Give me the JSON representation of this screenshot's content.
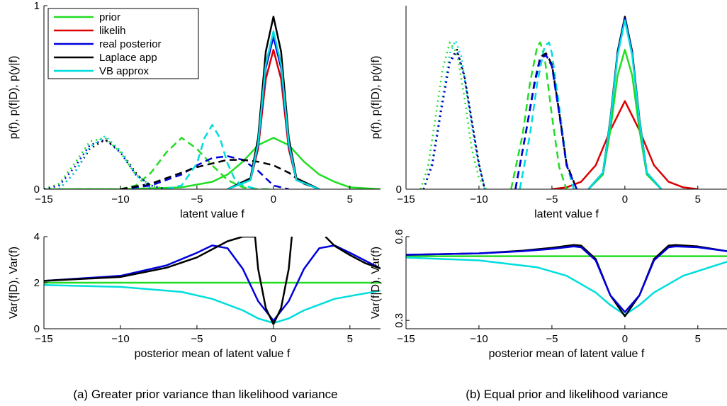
{
  "captions": {
    "a": "(a)  Greater prior variance than likelihood variance",
    "b": "(b)  Equal prior and likelihood variance"
  },
  "chart_data": [
    {
      "id": "a-top",
      "type": "line",
      "xlabel": "latent value f",
      "ylabel": "p(f), p(f|D), p(y|f)",
      "xlim": [
        -15,
        7
      ],
      "ylim": [
        0,
        1
      ],
      "xticks": [
        -15,
        -10,
        -5,
        0,
        5
      ],
      "yticks": [
        0,
        1
      ],
      "xtick_labels": [
        "−15",
        "−10",
        "−5",
        "0",
        "5"
      ],
      "ytick_labels": [
        "0",
        "1"
      ],
      "legend": {
        "position": "top-left",
        "entries": [
          "prior",
          "likelih",
          "real posterior",
          "Laplace app",
          "VB approx"
        ]
      },
      "series": [
        {
          "name": "prior",
          "color": "#22dd22",
          "dash": "solid",
          "x": [
            -15,
            -10,
            -6,
            -4,
            -3,
            -2,
            -1,
            0,
            1,
            2,
            3,
            4,
            5,
            7
          ],
          "y": [
            0,
            0,
            0.01,
            0.04,
            0.08,
            0.15,
            0.24,
            0.28,
            0.24,
            0.15,
            0.08,
            0.04,
            0.01,
            0
          ]
        },
        {
          "name": "prior",
          "color": "#22dd22",
          "dash": "dash",
          "x": [
            -13,
            -10,
            -9,
            -8,
            -7,
            -6,
            -5,
            -4,
            -3,
            -2,
            -1,
            0
          ],
          "y": [
            0,
            0,
            0.02,
            0.09,
            0.2,
            0.28,
            0.22,
            0.13,
            0.05,
            0.01,
            0,
            0
          ]
        },
        {
          "name": "prior",
          "color": "#22dd22",
          "dash": "dot",
          "x": [
            -15,
            -14,
            -13,
            -12,
            -11,
            -10,
            -9,
            -8,
            -7
          ],
          "y": [
            0,
            0.03,
            0.14,
            0.26,
            0.28,
            0.2,
            0.08,
            0.02,
            0
          ]
        },
        {
          "name": "likelih",
          "color": "#dd0000",
          "dash": "solid",
          "x": [
            -3,
            -1.5,
            -1,
            -0.5,
            0,
            0.5,
            1,
            1.5,
            3
          ],
          "y": [
            0,
            0.05,
            0.22,
            0.6,
            0.76,
            0.6,
            0.22,
            0.05,
            0
          ]
        },
        {
          "name": "real posterior",
          "color": "#0000dd",
          "dash": "solid",
          "x": [
            -3,
            -1.5,
            -1,
            -0.5,
            0,
            0.5,
            1,
            1.5,
            3
          ],
          "y": [
            0,
            0.05,
            0.24,
            0.66,
            0.83,
            0.66,
            0.24,
            0.05,
            0
          ]
        },
        {
          "name": "real posterior",
          "color": "#0000dd",
          "dash": "dash",
          "x": [
            -10,
            -8,
            -6,
            -5,
            -4,
            -3,
            -2,
            -1,
            0,
            1
          ],
          "y": [
            0,
            0.02,
            0.08,
            0.13,
            0.17,
            0.18,
            0.16,
            0.1,
            0.02,
            0
          ]
        },
        {
          "name": "real posterior",
          "color": "#0000dd",
          "dash": "dot",
          "x": [
            -15,
            -14,
            -13,
            -12,
            -11,
            -10,
            -9,
            -8,
            -7
          ],
          "y": [
            0,
            0.02,
            0.12,
            0.24,
            0.27,
            0.2,
            0.08,
            0.02,
            0
          ]
        },
        {
          "name": "Laplace app",
          "color": "#000000",
          "dash": "solid",
          "x": [
            -3,
            -1.5,
            -1,
            -0.5,
            0,
            0.5,
            1,
            1.5,
            3
          ],
          "y": [
            0,
            0.06,
            0.28,
            0.75,
            0.94,
            0.75,
            0.28,
            0.06,
            0
          ]
        },
        {
          "name": "Laplace app",
          "color": "#000000",
          "dash": "dash",
          "x": [
            -10,
            -8,
            -6,
            -5,
            -4,
            -3,
            -2,
            -1,
            0,
            1,
            2,
            3
          ],
          "y": [
            0,
            0.03,
            0.09,
            0.12,
            0.14,
            0.16,
            0.16,
            0.15,
            0.13,
            0.09,
            0.03,
            0
          ]
        },
        {
          "name": "Laplace app",
          "color": "#000000",
          "dash": "dot",
          "x": [
            -14,
            -13,
            -12,
            -11,
            -10,
            -9,
            -8
          ],
          "y": [
            0,
            0.09,
            0.22,
            0.27,
            0.21,
            0.09,
            0
          ]
        },
        {
          "name": "VB approx",
          "color": "#00dddd",
          "dash": "solid",
          "x": [
            -3,
            -1.5,
            -1,
            -0.5,
            0,
            0.5,
            1,
            1.5,
            3
          ],
          "y": [
            0,
            0.05,
            0.25,
            0.68,
            0.86,
            0.68,
            0.25,
            0.05,
            0
          ]
        },
        {
          "name": "VB approx",
          "color": "#00dddd",
          "dash": "dash",
          "x": [
            -7,
            -6,
            -5,
            -4.5,
            -4,
            -3.5,
            -3,
            -2.5,
            -2,
            -1
          ],
          "y": [
            0,
            0.02,
            0.14,
            0.28,
            0.35,
            0.28,
            0.14,
            0.05,
            0.02,
            0
          ]
        },
        {
          "name": "VB approx",
          "color": "#00dddd",
          "dash": "dot",
          "x": [
            -14,
            -13,
            -12,
            -11,
            -10,
            -9,
            -8
          ],
          "y": [
            0,
            0.09,
            0.23,
            0.29,
            0.21,
            0.08,
            0
          ]
        }
      ]
    },
    {
      "id": "a-bottom",
      "type": "line",
      "xlabel": "posterior mean of latent value f",
      "ylabel": "Var(f|D), Var(f)",
      "xlim": [
        -15,
        7
      ],
      "ylim": [
        0,
        4
      ],
      "xticks": [
        -15,
        -10,
        -5,
        0,
        5
      ],
      "yticks": [
        0,
        2,
        4
      ],
      "xtick_labels": [
        "−15",
        "−10",
        "−5",
        "0",
        "5"
      ],
      "ytick_labels": [
        "0",
        "2",
        "4"
      ],
      "series": [
        {
          "color": "#22dd22",
          "dash": "solid",
          "x": [
            -15,
            7
          ],
          "y": [
            2,
            2
          ]
        },
        {
          "color": "#00dddd",
          "dash": "solid",
          "x": [
            -15,
            -10,
            -6,
            -4,
            -2,
            -1,
            0,
            1,
            2,
            4,
            7
          ],
          "y": [
            1.9,
            1.82,
            1.6,
            1.3,
            0.8,
            0.45,
            0.25,
            0.45,
            0.8,
            1.3,
            1.66
          ]
        },
        {
          "color": "#0000dd",
          "dash": "solid",
          "x": [
            -15,
            -10,
            -7,
            -5,
            -4,
            -3,
            -2,
            -1,
            0,
            1,
            2,
            3,
            4,
            5,
            7
          ],
          "y": [
            2.08,
            2.3,
            2.75,
            3.3,
            3.62,
            3.5,
            2.6,
            1.2,
            0.35,
            1.2,
            2.6,
            3.5,
            3.62,
            3.3,
            2.62
          ]
        },
        {
          "color": "#000000",
          "dash": "solid",
          "x": [
            -15,
            -10,
            -7,
            -5,
            -4,
            -3,
            -2,
            -1.5,
            -1.2
          ],
          "y": [
            2.08,
            2.25,
            2.65,
            3.1,
            3.45,
            3.8,
            4.0,
            4.0,
            4.0
          ]
        },
        {
          "color": "#000000",
          "dash": "solid",
          "x": [
            -1.2,
            -1,
            -0.5,
            0,
            0.5,
            1,
            1.2
          ],
          "y": [
            4.0,
            2.6,
            0.9,
            0.2,
            0.9,
            2.6,
            4.0
          ]
        },
        {
          "color": "#000000",
          "dash": "solid",
          "x": [
            3.4,
            4,
            5,
            6,
            7
          ],
          "y": [
            4.0,
            3.6,
            3.2,
            2.85,
            2.62
          ]
        }
      ]
    },
    {
      "id": "b-top",
      "type": "line",
      "xlabel": "latent value f",
      "ylabel": "p(f), p(f|D), p(y|f)",
      "xlim": [
        -15,
        7
      ],
      "ylim": [
        0,
        1
      ],
      "xticks": [
        -15,
        -10,
        -5,
        0,
        5
      ],
      "yticks": [
        0
      ],
      "xtick_labels": [
        "−15",
        "−10",
        "−5",
        "0",
        "5"
      ],
      "ytick_labels": [
        "0"
      ],
      "series": [
        {
          "color": "#dd0000",
          "dash": "solid",
          "x": [
            -5,
            -4,
            -3,
            -2,
            -1,
            0,
            1,
            2,
            3,
            4,
            5
          ],
          "y": [
            0,
            0.01,
            0.04,
            0.13,
            0.32,
            0.48,
            0.32,
            0.13,
            0.04,
            0.01,
            0
          ]
        },
        {
          "color": "#22dd22",
          "dash": "solid",
          "x": [
            -2.5,
            -1.5,
            -1,
            -0.5,
            0,
            0.5,
            1,
            1.5,
            2.5
          ],
          "y": [
            0,
            0.08,
            0.32,
            0.62,
            0.76,
            0.62,
            0.32,
            0.08,
            0
          ]
        },
        {
          "color": "#000000",
          "dash": "solid",
          "x": [
            -2.5,
            -1.5,
            -1,
            -0.5,
            0,
            0.5,
            1,
            1.5,
            2.5
          ],
          "y": [
            0,
            0.09,
            0.38,
            0.75,
            0.94,
            0.75,
            0.38,
            0.09,
            0
          ]
        },
        {
          "color": "#0000dd",
          "dash": "solid",
          "x": [
            -2.5,
            -1.5,
            -1,
            -0.5,
            0,
            0.5,
            1,
            1.5,
            2.5
          ],
          "y": [
            0,
            0.09,
            0.37,
            0.74,
            0.93,
            0.74,
            0.37,
            0.09,
            0
          ]
        },
        {
          "color": "#00dddd",
          "dash": "solid",
          "x": [
            -2.5,
            -1.5,
            -1,
            -0.5,
            0,
            0.5,
            1,
            1.5,
            2.5
          ],
          "y": [
            0,
            0.09,
            0.37,
            0.73,
            0.92,
            0.73,
            0.37,
            0.09,
            0
          ]
        },
        {
          "color": "#22dd22",
          "dash": "dash",
          "x": [
            -7.8,
            -7,
            -6.5,
            -6,
            -5.8,
            -5.5,
            -5,
            -4.5,
            -4
          ],
          "y": [
            0,
            0.3,
            0.58,
            0.78,
            0.8,
            0.72,
            0.4,
            0.12,
            0
          ]
        },
        {
          "color": "#00dddd",
          "dash": "dash",
          "x": [
            -7.2,
            -6.5,
            -6,
            -5.5,
            -5.2,
            -5,
            -4.5,
            -4,
            -3.5
          ],
          "y": [
            0,
            0.3,
            0.58,
            0.78,
            0.8,
            0.74,
            0.45,
            0.14,
            0
          ]
        },
        {
          "color": "#000000",
          "dash": "dash",
          "x": [
            -7.5,
            -6.8,
            -6.2,
            -5.8,
            -5.4,
            -5,
            -4.5,
            -4,
            -3.3
          ],
          "y": [
            0,
            0.3,
            0.58,
            0.72,
            0.74,
            0.68,
            0.42,
            0.14,
            0
          ]
        },
        {
          "color": "#0000dd",
          "dash": "dash",
          "x": [
            -7.5,
            -6.8,
            -6.2,
            -5.8,
            -5.4,
            -5,
            -4.5,
            -4,
            -3.3
          ],
          "y": [
            0,
            0.3,
            0.57,
            0.71,
            0.73,
            0.67,
            0.41,
            0.13,
            0
          ]
        },
        {
          "color": "#22dd22",
          "dash": "dot",
          "x": [
            -14,
            -13.5,
            -13,
            -12.5,
            -12,
            -11.5,
            -11,
            -10.5,
            -10,
            -9.5
          ],
          "y": [
            0,
            0.12,
            0.38,
            0.65,
            0.8,
            0.74,
            0.5,
            0.22,
            0.06,
            0
          ]
        },
        {
          "color": "#00dddd",
          "dash": "dot",
          "x": [
            -13.8,
            -13.2,
            -12.6,
            -12,
            -11.6,
            -11.2,
            -10.8,
            -10.2,
            -9.6
          ],
          "y": [
            0,
            0.15,
            0.45,
            0.74,
            0.81,
            0.72,
            0.5,
            0.2,
            0
          ]
        },
        {
          "color": "#000000",
          "dash": "dot",
          "x": [
            -13.8,
            -13.2,
            -12.6,
            -12,
            -11.5,
            -11,
            -10.5,
            -10,
            -9.6
          ],
          "y": [
            0,
            0.14,
            0.43,
            0.7,
            0.76,
            0.62,
            0.38,
            0.14,
            0
          ]
        },
        {
          "color": "#0000dd",
          "dash": "dot",
          "x": [
            -13.8,
            -13.2,
            -12.6,
            -12,
            -11.5,
            -11,
            -10.5,
            -10,
            -9.6
          ],
          "y": [
            0,
            0.13,
            0.42,
            0.69,
            0.75,
            0.61,
            0.37,
            0.13,
            0
          ]
        }
      ]
    },
    {
      "id": "b-bottom",
      "type": "line",
      "xlabel": "posterior mean of latent value f",
      "ylabel": "Var(f|D), Var(f)",
      "xlim": [
        -15,
        7
      ],
      "ylim": [
        0.27,
        0.6
      ],
      "xticks": [
        -15,
        -10,
        -5,
        0,
        5
      ],
      "yticks": [
        0.3,
        0.6
      ],
      "xtick_labels": [
        "−15",
        "−10",
        "−5",
        "0",
        "5"
      ],
      "ytick_labels": [
        "0.3",
        "0.6"
      ],
      "series": [
        {
          "color": "#22dd22",
          "dash": "solid",
          "x": [
            -15,
            7
          ],
          "y": [
            0.53,
            0.53
          ]
        },
        {
          "color": "#00dddd",
          "dash": "solid",
          "x": [
            -15,
            -10,
            -6,
            -4,
            -2,
            -1,
            0,
            1,
            2,
            4,
            7
          ],
          "y": [
            0.525,
            0.515,
            0.49,
            0.46,
            0.4,
            0.355,
            0.32,
            0.355,
            0.4,
            0.46,
            0.51
          ]
        },
        {
          "color": "#000000",
          "dash": "solid",
          "x": [
            -15,
            -10,
            -7,
            -5,
            -3.5,
            -3,
            -2,
            -1,
            0,
            1,
            2,
            3,
            3.5,
            5,
            7
          ],
          "y": [
            0.535,
            0.54,
            0.55,
            0.56,
            0.57,
            0.568,
            0.52,
            0.39,
            0.315,
            0.39,
            0.52,
            0.568,
            0.57,
            0.565,
            0.548
          ]
        },
        {
          "color": "#0000dd",
          "dash": "solid",
          "x": [
            -15,
            -10,
            -7,
            -5,
            -3.5,
            -3,
            -2,
            -1,
            0,
            1,
            2,
            3,
            3.5,
            5,
            7
          ],
          "y": [
            0.535,
            0.54,
            0.548,
            0.556,
            0.565,
            0.562,
            0.515,
            0.39,
            0.33,
            0.39,
            0.515,
            0.562,
            0.565,
            0.562,
            0.548
          ]
        }
      ]
    }
  ]
}
